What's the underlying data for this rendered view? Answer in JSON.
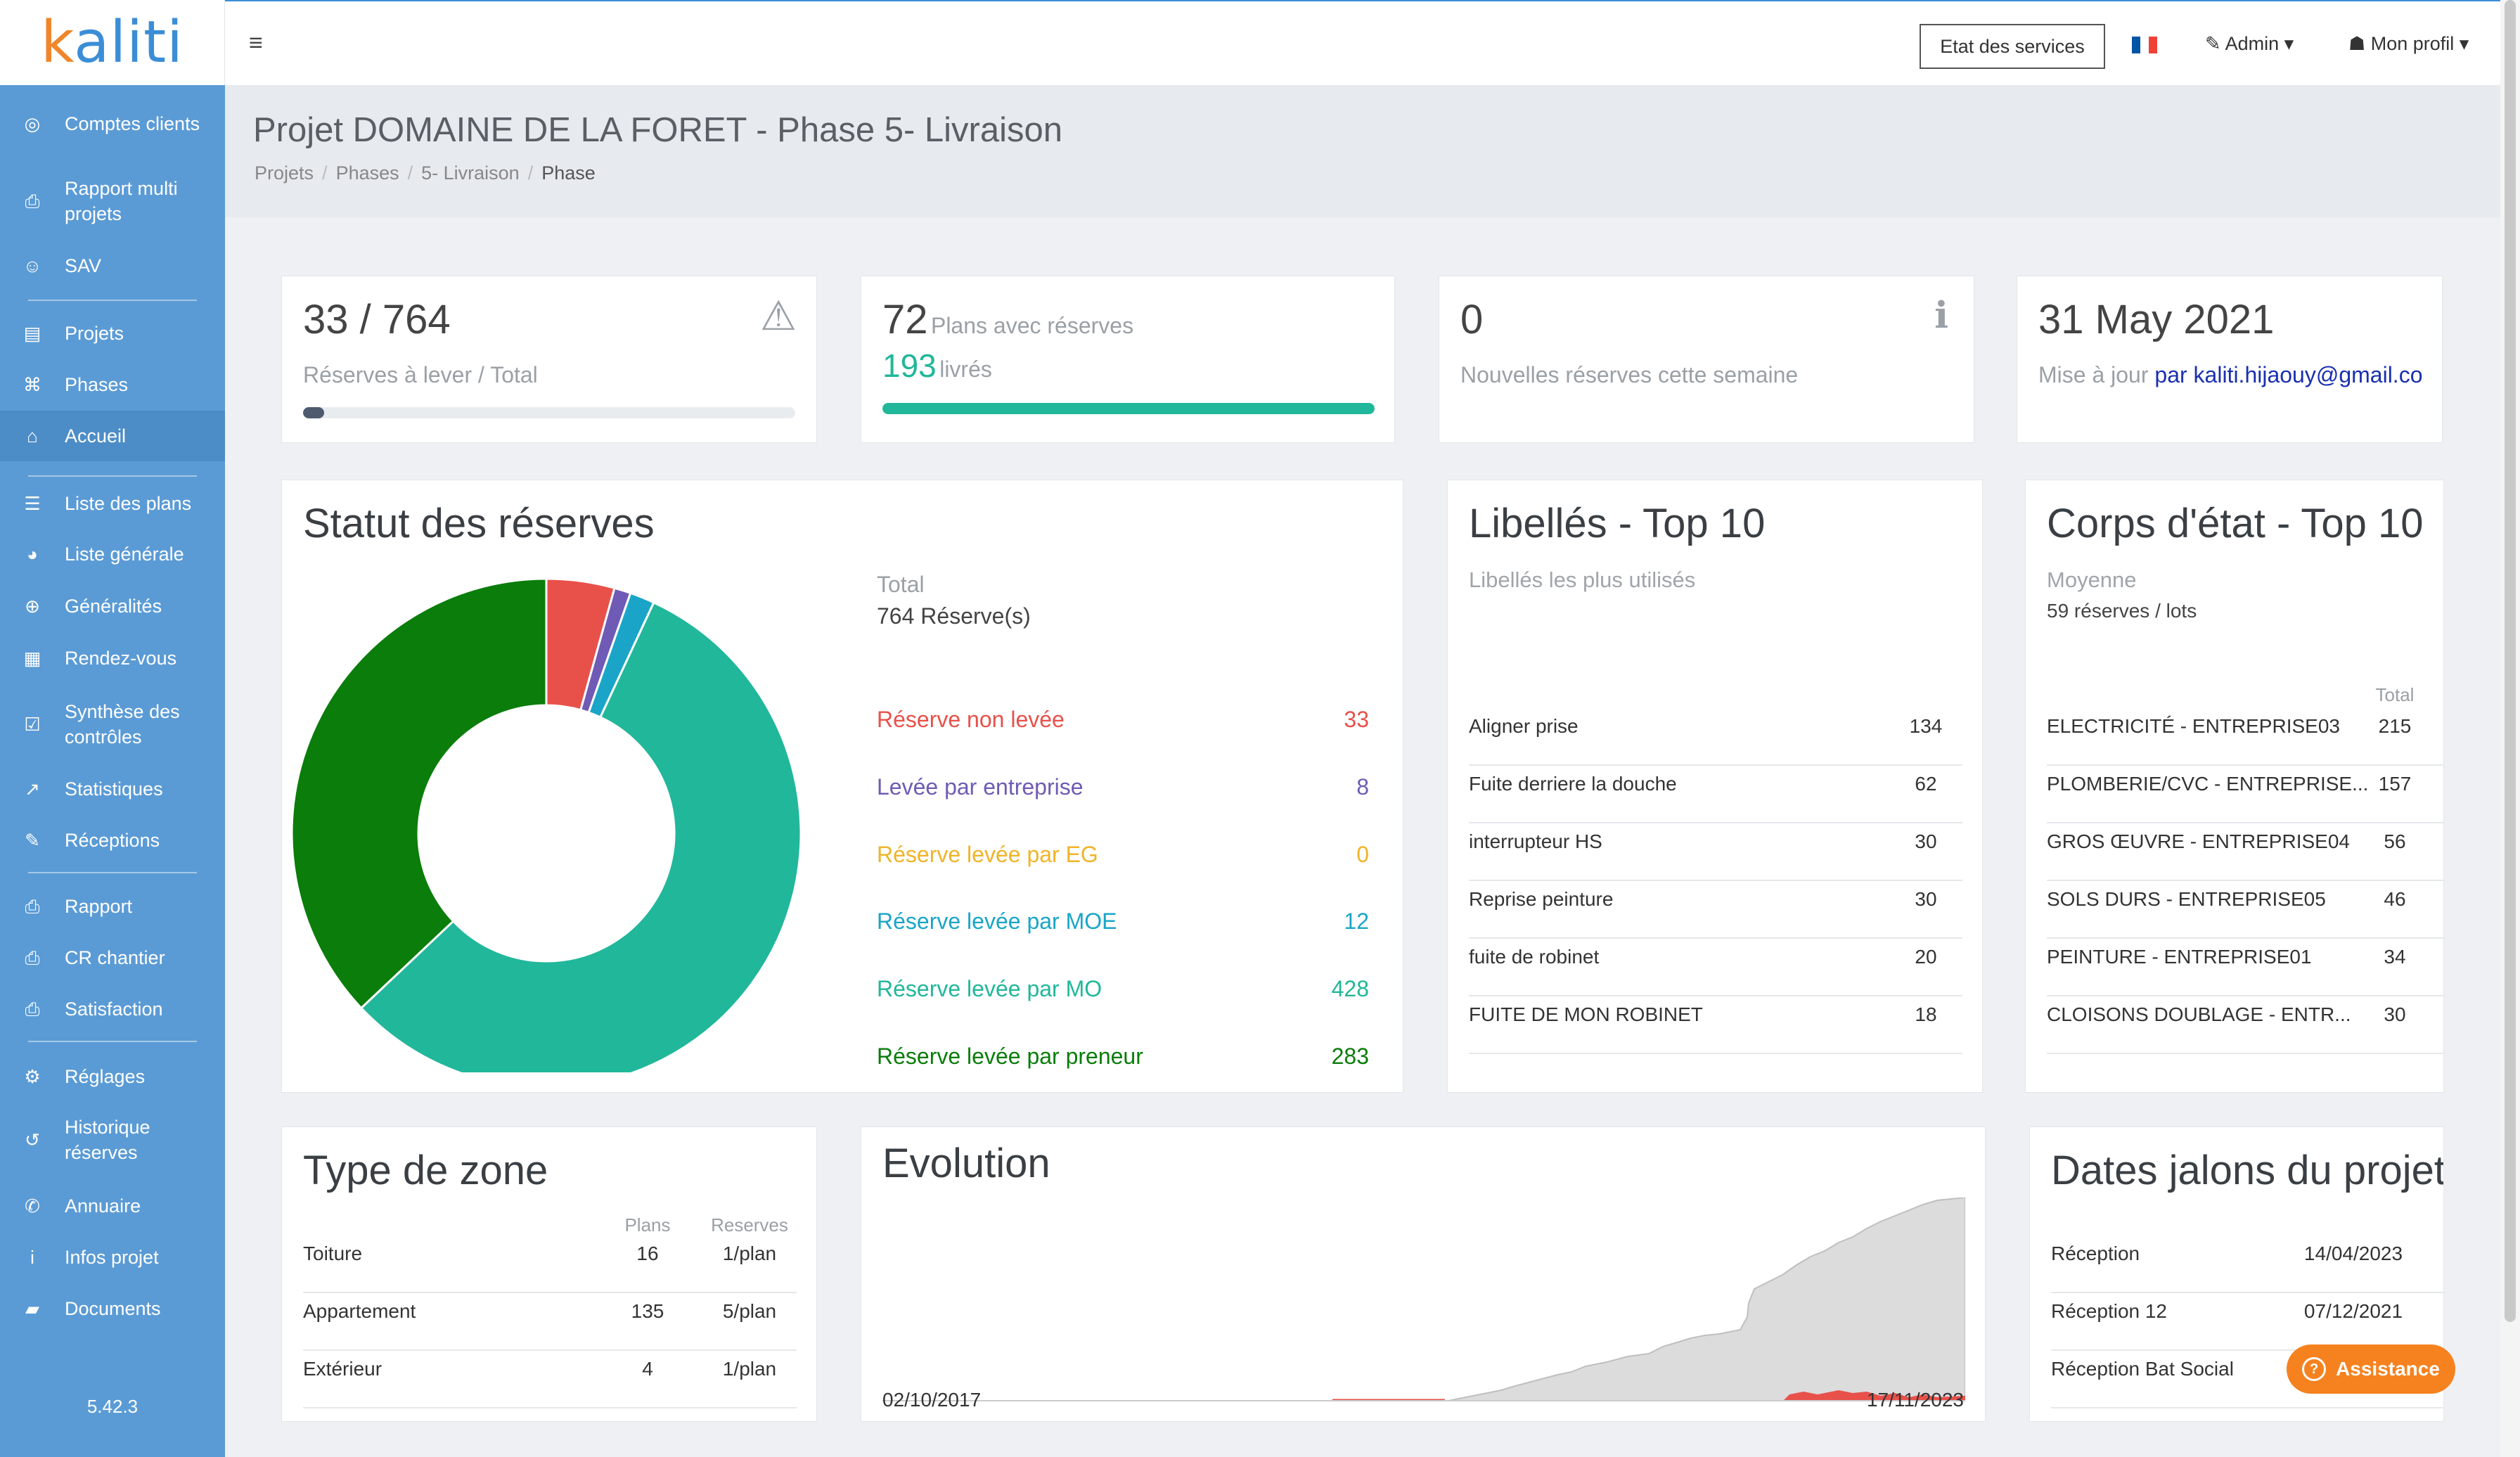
{
  "logo": {
    "k": "k",
    "rest": "aliti"
  },
  "sidebar": {
    "items": [
      {
        "icon": "◎",
        "label": "Comptes clients",
        "active": false
      },
      {
        "icon": "⎙",
        "label": "Rapport multi projets",
        "active": false
      },
      {
        "icon": "☺",
        "label": "SAV",
        "active": false
      },
      {
        "icon": "▤",
        "label": "Projets",
        "active": false
      },
      {
        "icon": "⌘",
        "label": "Phases",
        "active": false
      },
      {
        "icon": "⌂",
        "label": "Accueil",
        "active": true
      },
      {
        "icon": "☰",
        "label": "Liste des plans",
        "active": false
      },
      {
        "icon": "◕",
        "label": "Liste générale",
        "active": false
      },
      {
        "icon": "⊕",
        "label": "Généralités",
        "active": false
      },
      {
        "icon": "▦",
        "label": "Rendez-vous",
        "active": false
      },
      {
        "icon": "☑",
        "label": "Synthèse des contrôles",
        "active": false
      },
      {
        "icon": "↗",
        "label": "Statistiques",
        "active": false
      },
      {
        "icon": "✎",
        "label": "Réceptions",
        "active": false
      },
      {
        "icon": "⎙",
        "label": "Rapport",
        "active": false
      },
      {
        "icon": "⎙",
        "label": "CR chantier",
        "active": false
      },
      {
        "icon": "⎙",
        "label": "Satisfaction",
        "active": false
      },
      {
        "icon": "⚙",
        "label": "Réglages",
        "active": false
      },
      {
        "icon": "↺",
        "label": "Historique réserves",
        "active": false
      },
      {
        "icon": "✆",
        "label": "Annuaire",
        "active": false
      },
      {
        "icon": "i",
        "label": "Infos projet",
        "active": false
      },
      {
        "icon": "▰",
        "label": "Documents",
        "active": false
      }
    ],
    "version": "5.42.3"
  },
  "topbar": {
    "menu_icon": "≡",
    "etat_button": "Etat des services",
    "admin": "✎ Admin ▾",
    "profil": "☗ Mon profil ▾",
    "flag_colors": [
      "#0055a4",
      "#ffffff",
      "#ef4135"
    ]
  },
  "header": {
    "title": "Projet DOMAINE DE LA FORET - Phase 5- Livraison",
    "breadcrumb": [
      "Projets",
      "Phases",
      "5- Livraison",
      "Phase"
    ]
  },
  "stats": {
    "reserves": {
      "value": "33 / 764",
      "label": "Réserves à lever / Total",
      "progress": 0.043,
      "icon": "⚠"
    },
    "plans": {
      "count": "72",
      "count_label": "Plans avec réserves",
      "livres": "193",
      "livres_label": "livrés",
      "progress": 1.0
    },
    "nouvelles": {
      "value": "0",
      "label": "Nouvelles réserves cette semaine",
      "icon": "ℹ"
    },
    "maj": {
      "date": "31 May 2021",
      "label": "Mise à jour",
      "by": "par kaliti.hijaouy@gmail.co"
    }
  },
  "statut": {
    "title": "Statut des réserves",
    "total_label": "Total",
    "total_value": "764 Réserve(s)",
    "rows": [
      {
        "label": "Réserve non levée",
        "value": "33",
        "color": "#e8514a"
      },
      {
        "label": "Levée par entreprise",
        "value": "8",
        "color": "#6f5bb5"
      },
      {
        "label": "Réserve levée par EG",
        "value": "0",
        "color": "#f0b429"
      },
      {
        "label": "Réserve levée par MOE",
        "value": "12",
        "color": "#1aa5c8"
      },
      {
        "label": "Réserve levée par MO",
        "value": "428",
        "color": "#21b79a"
      },
      {
        "label": "Réserve levée par preneur",
        "value": "283",
        "color": "#0a7d0a"
      }
    ]
  },
  "libelles": {
    "title": "Libellés - Top 10",
    "subtitle": "Libellés les plus utilisés",
    "rows": [
      {
        "label": "Aligner prise",
        "value": "134"
      },
      {
        "label": "Fuite derriere la douche",
        "value": "62"
      },
      {
        "label": "interrupteur HS",
        "value": "30"
      },
      {
        "label": "Reprise peinture",
        "value": "30"
      },
      {
        "label": "fuite de robinet",
        "value": "20"
      },
      {
        "label": "FUITE DE MON ROBINET",
        "value": "18"
      }
    ]
  },
  "corps": {
    "title": "Corps d'état - Top 10",
    "subtitle": "Moyenne",
    "moyenne": "59 réserves / lots",
    "col_total": "Total",
    "rows": [
      {
        "label": "ELECTRICITÉ - ENTREPRISE03",
        "value": "215"
      },
      {
        "label": "PLOMBERIE/CVC - ENTREPRISE...",
        "value": "157"
      },
      {
        "label": "GROS ŒUVRE - ENTREPRISE04",
        "value": "56"
      },
      {
        "label": "SOLS DURS - ENTREPRISE05",
        "value": "46"
      },
      {
        "label": "PEINTURE - ENTREPRISE01",
        "value": "34"
      },
      {
        "label": "CLOISONS DOUBLAGE - ENTR...",
        "value": "30"
      }
    ]
  },
  "zone": {
    "title": "Type de zone",
    "col_plans": "Plans",
    "col_reserves": "Reserves",
    "rows": [
      {
        "label": "Toiture",
        "plans": "16",
        "reserves": "1/plan"
      },
      {
        "label": "Appartement",
        "plans": "135",
        "reserves": "5/plan"
      },
      {
        "label": "Extérieur",
        "plans": "4",
        "reserves": "1/plan"
      }
    ]
  },
  "evolution": {
    "title": "Evolution",
    "date_start": "02/10/2017",
    "date_end": "17/11/2023"
  },
  "jalons": {
    "title": "Dates jalons du projet",
    "rows": [
      {
        "label": "Réception",
        "date": "14/04/2023"
      },
      {
        "label": "Réception 12",
        "date": "07/12/2021"
      },
      {
        "label": "Réception Bat Social",
        "date": ""
      }
    ]
  },
  "assistance": {
    "label": "Assistance",
    "icon": "?"
  }
}
